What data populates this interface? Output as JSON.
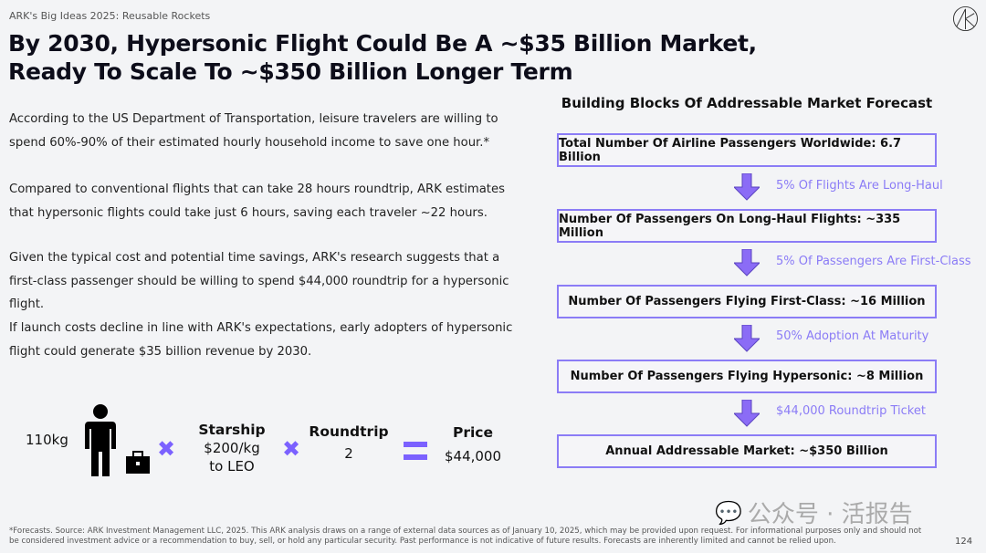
{
  "header": {
    "kicker": "ARK's Big Ideas 2025: Reusable Rockets",
    "title_line1": "By 2030, Hypersonic Flight Could Be A ~$35 Billion Market,",
    "title_line2": "Ready To Scale To ~$350 Billion Longer Term",
    "logo": "ark-logo"
  },
  "paragraphs": [
    "According to the US Department of Transportation, leisure travelers are willing to spend 60%-90% of their estimated hourly household income to save one hour.*",
    "Compared to conventional flights that can take 28 hours roundtrip, ARK estimates that hypersonic flights could take just 6 hours, saving each traveler ~22 hours.",
    "Given the typical cost and potential time savings, ARK's research suggests that a first-class passenger should be willing to spend $44,000 roundtrip for a hypersonic flight.",
    "If launch costs decline in line with ARK's expectations, early adopters of hypersonic flight could generate $35 billion revenue by 2030."
  ],
  "calc": {
    "weight": "110kg",
    "starship_label": "Starship",
    "starship_value": "$200/kg to LEO",
    "roundtrip_label": "Roundtrip",
    "roundtrip_value": "2",
    "price_label": "Price",
    "price_value": "$44,000",
    "accent": "#7b61ff"
  },
  "forecast": {
    "title": "Building Blocks Of Addressable Market Forecast",
    "boxes": [
      "Total Number Of Airline Passengers Worldwide: 6.7 Billion",
      "Number Of Passengers On Long-Haul Flights: ~335 Million",
      "Number Of Passengers Flying First-Class: ~16 Million",
      "Number Of Passengers Flying Hypersonic: ~8 Million",
      "Annual Addressable Market: ~$350 Billion"
    ],
    "steps": [
      "5% Of Flights Are Long-Haul",
      "5% Of Passengers Are First-Class",
      "50% Adoption At Maturity",
      "$44,000 Roundtrip Ticket"
    ],
    "accent": "#8b7cf6"
  },
  "footer": {
    "text": "*Forecasts. Source: ARK Investment Management LLC, 2025. This ARK analysis draws on a range of external data sources as of January 10, 2025, which may be provided upon request. For informational purposes only and should not be considered investment advice or a recommendation to buy, sell, or hold any particular security. Past performance is not indicative of future results. Forecasts are inherently limited and cannot be relied upon.",
    "page": "124"
  },
  "watermark": "公众号 · 活报告"
}
